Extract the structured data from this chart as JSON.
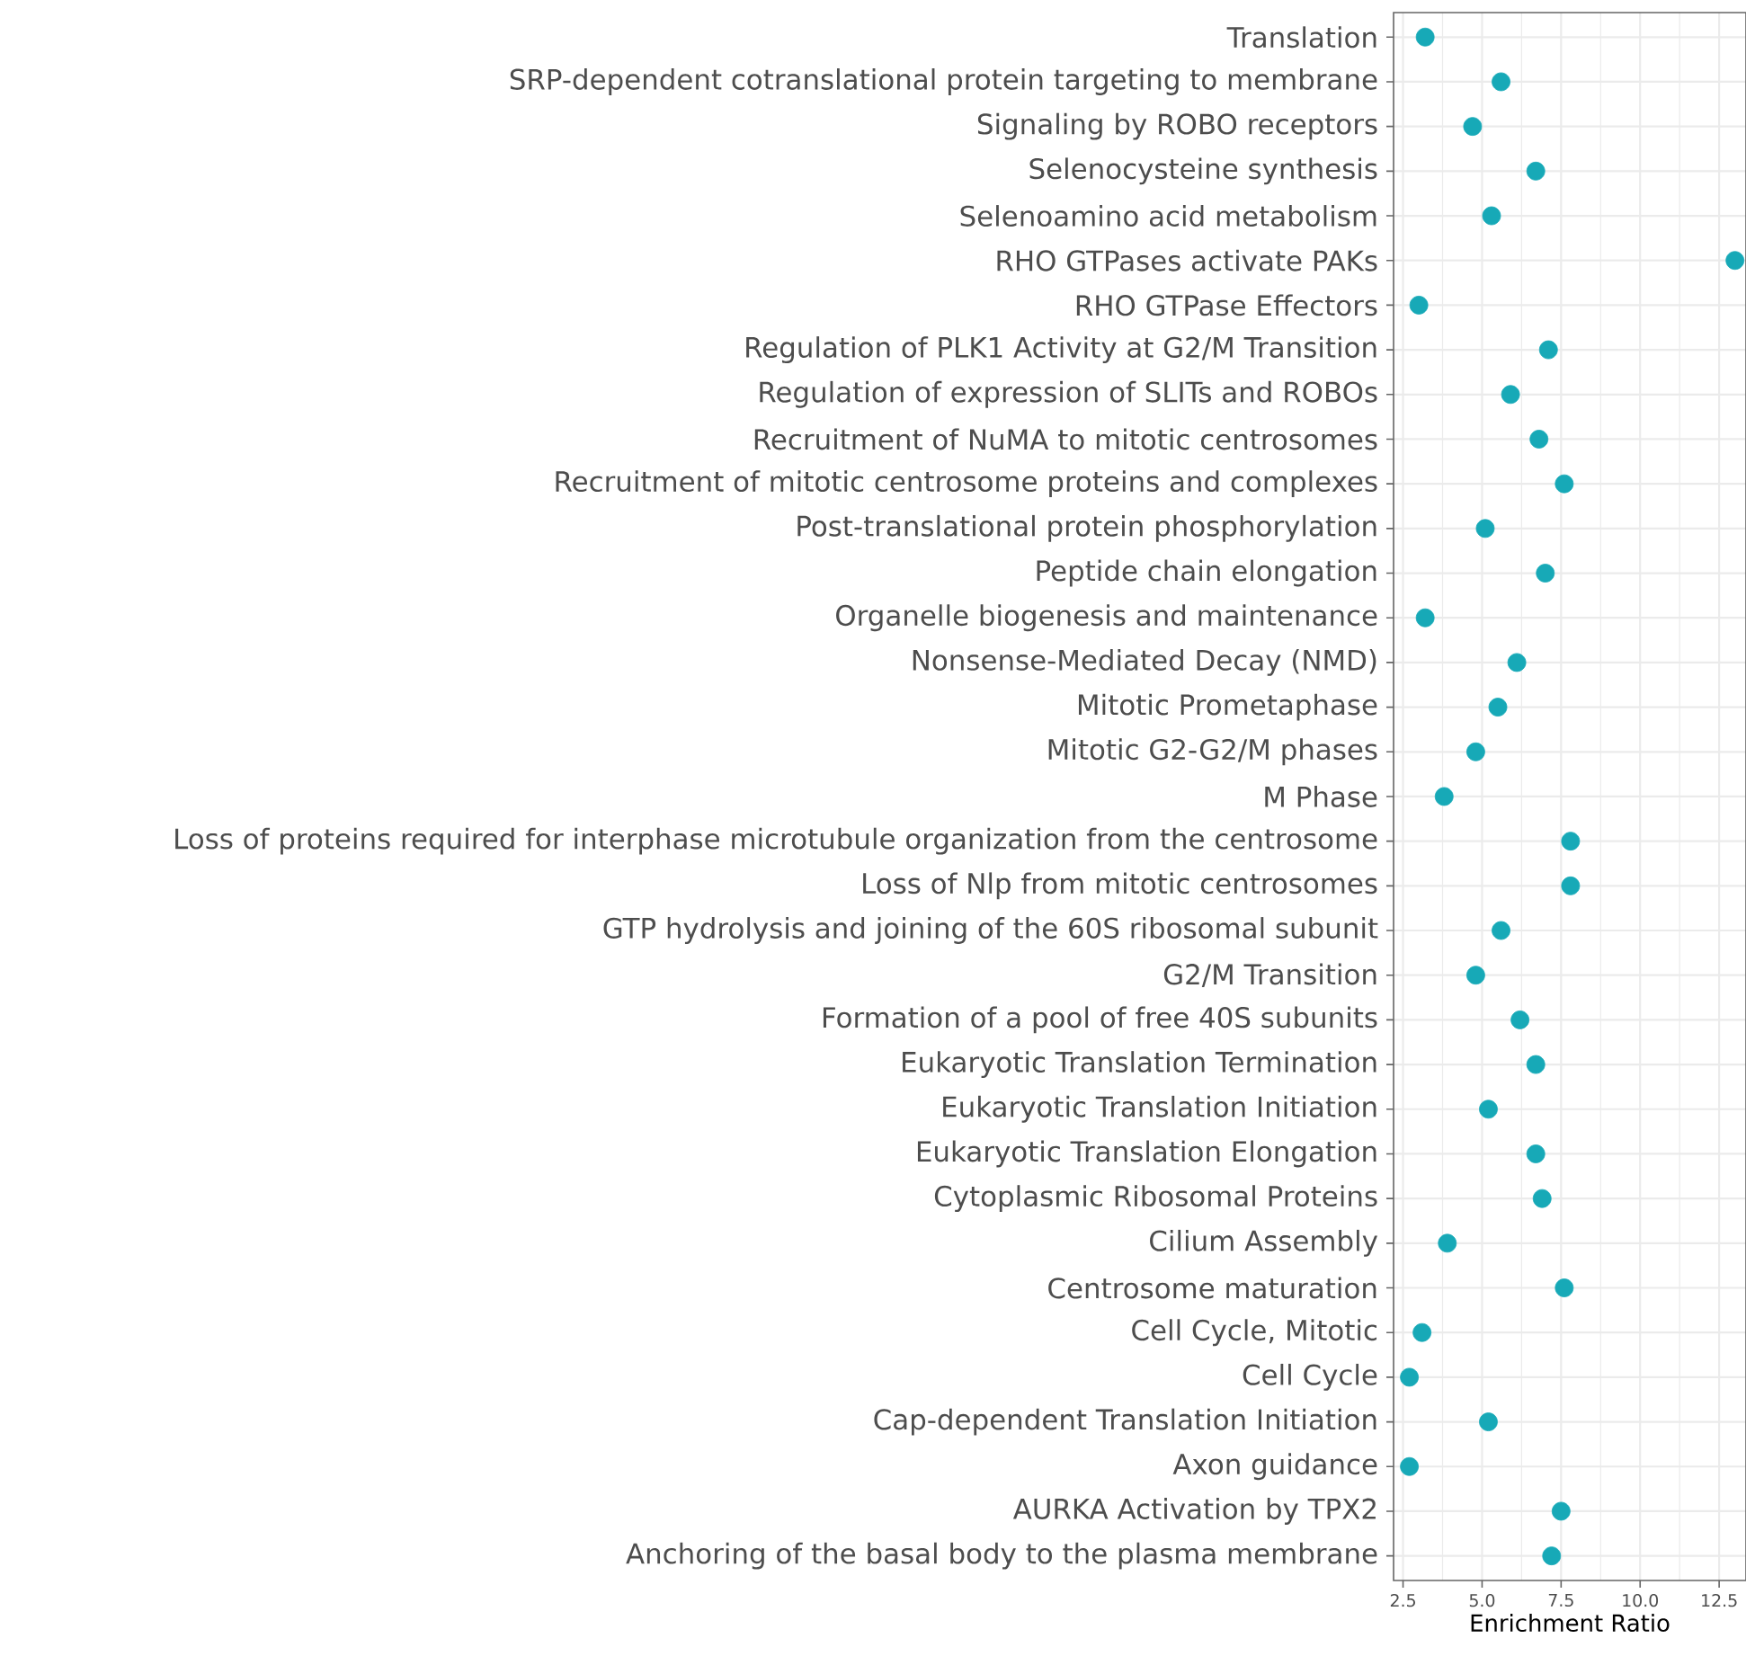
{
  "chart_data": {
    "type": "scatter",
    "orientation": "horizontal",
    "xlabel": "Enrichment Ratio",
    "categories": [
      "Translation",
      "SRP-dependent cotranslational protein targeting to membrane",
      "Signaling by ROBO receptors",
      "Selenocysteine synthesis",
      "Selenoamino acid metabolism",
      "RHO GTPases activate PAKs",
      "RHO GTPase Effectors",
      "Regulation of PLK1 Activity at G2/M Transition",
      "Regulation of expression of SLITs and ROBOs",
      "Recruitment of NuMA to mitotic centrosomes",
      "Recruitment of mitotic centrosome proteins and complexes",
      "Post-translational protein phosphorylation",
      "Peptide chain elongation",
      "Organelle biogenesis and maintenance",
      "Nonsense-Mediated Decay (NMD)",
      "Mitotic Prometaphase",
      "Mitotic G2-G2/M phases",
      "M Phase",
      "Loss of proteins required for interphase microtubule organization from the centrosome",
      "Loss of Nlp from mitotic centrosomes",
      "GTP hydrolysis and joining of the 60S ribosomal subunit",
      "G2/M Transition",
      "Formation of a pool of free 40S subunits",
      "Eukaryotic Translation Termination",
      "Eukaryotic Translation Initiation",
      "Eukaryotic Translation Elongation",
      "Cytoplasmic Ribosomal Proteins",
      "Cilium Assembly",
      "Centrosome maturation",
      "Cell Cycle, Mitotic",
      "Cell Cycle",
      "Cap-dependent Translation Initiation",
      "Axon guidance",
      "AURKA Activation by TPX2",
      "Anchoring of the basal body to the plasma membrane"
    ],
    "values": [
      3.2,
      5.6,
      4.7,
      6.7,
      5.3,
      13.0,
      3.0,
      7.1,
      5.9,
      6.8,
      7.6,
      5.1,
      7.0,
      3.2,
      6.1,
      5.5,
      4.8,
      3.8,
      7.8,
      7.8,
      5.6,
      4.8,
      6.2,
      6.7,
      5.2,
      6.7,
      6.9,
      3.9,
      7.6,
      3.1,
      2.7,
      5.2,
      2.7,
      7.5,
      7.2
    ],
    "color": "#17a9b7",
    "marker": "circle",
    "grid": true,
    "xlim": [
      2.2,
      13.35
    ],
    "xticks": [
      {
        "value": 2.5,
        "label": "2.5"
      },
      {
        "value": 5,
        "label": "5.0"
      },
      {
        "value": 7.5,
        "label": "7.5"
      },
      {
        "value": 10,
        "label": "10.0"
      },
      {
        "value": 12.5,
        "label": "12.5"
      }
    ]
  }
}
